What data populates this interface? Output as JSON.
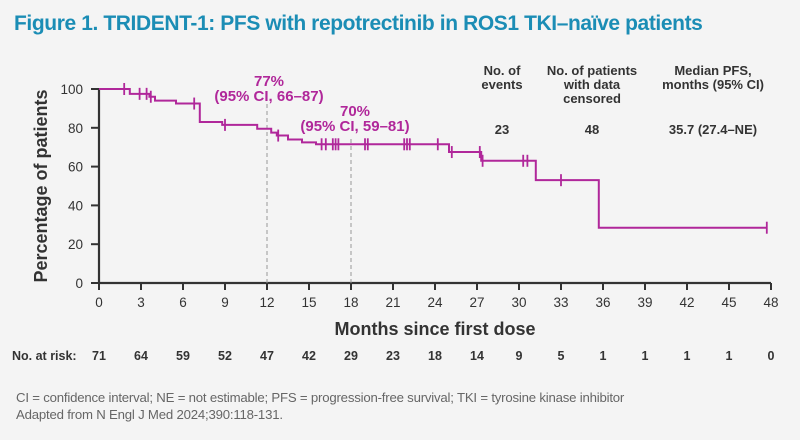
{
  "title": "Figure 1. TRIDENT-1: PFS with repotrectinib in ROS1 TKI–naïve patients",
  "colors": {
    "title": "#1b8db5",
    "curve": "#b0279a",
    "axis": "#333333",
    "text": "#333333"
  },
  "chart_data": {
    "type": "line",
    "subtype": "kaplan-meier",
    "title": "TRIDENT-1: PFS with repotrectinib in ROS1 TKI–naïve patients",
    "xlabel": "Months since first dose",
    "ylabel": "Percentage of patients",
    "xlim": [
      0,
      48
    ],
    "ylim": [
      0,
      100
    ],
    "xticks": [
      0,
      3,
      6,
      9,
      12,
      15,
      18,
      21,
      24,
      27,
      30,
      33,
      36,
      39,
      42,
      45,
      48
    ],
    "yticks": [
      0,
      20,
      40,
      60,
      80,
      100
    ],
    "grid": false,
    "series": [
      {
        "name": "Repotrectinib",
        "steps": [
          [
            0,
            100
          ],
          [
            2.2,
            97.5
          ],
          [
            3.6,
            96
          ],
          [
            4.0,
            94
          ],
          [
            5.5,
            92.5
          ],
          [
            7.2,
            83
          ],
          [
            8.8,
            81.5
          ],
          [
            11.3,
            79.5
          ],
          [
            12.3,
            77.5
          ],
          [
            12.7,
            76
          ],
          [
            13.5,
            74
          ],
          [
            14.5,
            72.5
          ],
          [
            15.5,
            71.5
          ],
          [
            25.0,
            67.5
          ],
          [
            27.3,
            63
          ],
          [
            31.2,
            53
          ],
          [
            35.7,
            28.5
          ],
          [
            47.7,
            28.5
          ]
        ],
        "censored": [
          [
            1.8,
            100
          ],
          [
            2.9,
            97.5
          ],
          [
            3.4,
            97.5
          ],
          [
            3.7,
            96
          ],
          [
            6.8,
            92.5
          ],
          [
            9.0,
            81.5
          ],
          [
            12.8,
            76
          ],
          [
            15.9,
            71.5
          ],
          [
            16.2,
            71.5
          ],
          [
            16.7,
            71.5
          ],
          [
            16.9,
            71.5
          ],
          [
            17.1,
            71.5
          ],
          [
            19.0,
            71.5
          ],
          [
            19.2,
            71.5
          ],
          [
            21.8,
            71.5
          ],
          [
            22.0,
            71.5
          ],
          [
            22.2,
            71.5
          ],
          [
            24.2,
            71.5
          ],
          [
            25.2,
            67.5
          ],
          [
            27.2,
            67.5
          ],
          [
            27.4,
            63
          ],
          [
            30.3,
            63
          ],
          [
            30.6,
            63
          ],
          [
            33.0,
            53
          ],
          [
            47.7,
            28.5
          ]
        ]
      }
    ],
    "reference_lines": [
      {
        "x": 12,
        "label_line1": "77%",
        "label_line2": "(95% CI, 66–87)"
      },
      {
        "x": 18,
        "label_line1": "70%",
        "label_line2": "(95% CI, 59–81)"
      }
    ],
    "summary_table": {
      "headers": [
        [
          "No. of",
          "events"
        ],
        [
          "No. of patients",
          "with data",
          "censored"
        ],
        [
          "Median PFS,",
          "months (95% CI)"
        ]
      ],
      "values": [
        "23",
        "48",
        "35.7 (27.4–NE)"
      ]
    },
    "at_risk": {
      "label": "No. at risk:",
      "values": [
        71,
        64,
        59,
        52,
        47,
        42,
        29,
        23,
        18,
        14,
        9,
        5,
        1,
        1,
        1,
        1,
        0
      ]
    }
  },
  "footer": {
    "line1": "CI = confidence interval; NE = not estimable; PFS = progression-free survival; TKI = tyrosine kinase inhibitor",
    "line2": "Adapted from N Engl J Med 2024;390:118-131."
  }
}
